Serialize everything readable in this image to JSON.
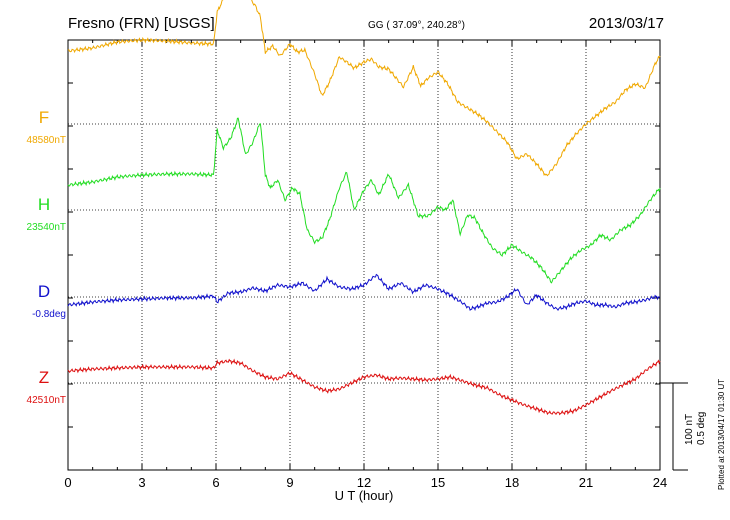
{
  "header": {
    "station": "Fresno (FRN)  [USGS]",
    "coords": "GG ( 37.09°, 240.28°)",
    "date": "2013/03/17"
  },
  "side_note": "Plotted at 2013/04/17 01:30 UT",
  "scale_labels": [
    "100 nT",
    "0.5 deg"
  ],
  "colors": {
    "F": "#f0a800",
    "H": "#22dd22",
    "D": "#1010cc",
    "Z": "#dd1010",
    "axis": "#000000"
  },
  "chart_data": {
    "type": "line",
    "xlabel": "U T (hour)",
    "xlim": [
      0,
      24
    ],
    "xticks": [
      "0",
      "3",
      "6",
      "9",
      "12",
      "15",
      "18",
      "21",
      "24"
    ],
    "series": [
      {
        "name": "F",
        "baseline_label": "48580nT",
        "x": [
          0,
          1,
          2,
          3,
          4,
          5,
          5.9,
          6.05,
          6.3,
          6.6,
          6.8,
          7.0,
          7.3,
          7.6,
          7.8,
          8.0,
          8.3,
          8.6,
          9.0,
          9.3,
          9.6,
          10.0,
          10.3,
          10.6,
          11.0,
          11.3,
          11.6,
          12.0,
          12.3,
          12.6,
          13.0,
          13.3,
          13.6,
          14.0,
          14.3,
          14.6,
          15.0,
          15.4,
          15.8,
          16.2,
          16.6,
          17.0,
          17.4,
          17.8,
          18.2,
          18.6,
          19.0,
          19.4,
          19.8,
          20.2,
          20.6,
          21.0,
          21.4,
          21.8,
          22.2,
          22.6,
          23.0,
          23.4,
          23.8,
          24
        ],
        "y": [
          73,
          76,
          82,
          84,
          83,
          81,
          80,
          112,
          125,
          137,
          150,
          140,
          128,
          118,
          107,
          72,
          78,
          68,
          80,
          72,
          74,
          50,
          28,
          42,
          67,
          62,
          56,
          62,
          65,
          57,
          55,
          46,
          37,
          57,
          38,
          46,
          52,
          40,
          22,
          16,
          10,
          2,
          -8,
          -18,
          -35,
          -30,
          -40,
          -52,
          -40,
          -22,
          -10,
          0,
          8,
          16,
          22,
          34,
          40,
          36,
          60,
          68
        ]
      },
      {
        "name": "H",
        "baseline_label": "23540nT",
        "x": [
          0,
          1,
          2,
          3,
          4,
          5,
          5.9,
          6.05,
          6.3,
          6.6,
          6.9,
          7.2,
          7.5,
          7.8,
          8.0,
          8.2,
          8.5,
          8.8,
          9.1,
          9.4,
          9.7,
          10.0,
          10.3,
          10.6,
          11.0,
          11.3,
          11.6,
          12.0,
          12.3,
          12.6,
          13.0,
          13.4,
          13.8,
          14.2,
          14.6,
          15.0,
          15.3,
          15.6,
          15.9,
          16.2,
          16.5,
          16.8,
          17.2,
          17.6,
          18.0,
          18.4,
          18.8,
          19.2,
          19.6,
          20.0,
          20.4,
          20.8,
          21.2,
          21.6,
          22.0,
          22.4,
          22.8,
          23.2,
          23.6,
          24
        ],
        "y": [
          25,
          28,
          33,
          35,
          36,
          36,
          35,
          80,
          62,
          72,
          92,
          55,
          68,
          88,
          35,
          22,
          30,
          10,
          22,
          16,
          -20,
          -32,
          -28,
          -10,
          22,
          38,
          0,
          20,
          30,
          15,
          36,
          12,
          25,
          -6,
          -6,
          3,
          0,
          10,
          -24,
          -5,
          -8,
          -22,
          -38,
          -45,
          -35,
          -42,
          -48,
          -58,
          -72,
          -60,
          -48,
          -40,
          -35,
          -25,
          -30,
          -20,
          -15,
          -5,
          10,
          22
        ]
      },
      {
        "name": "D",
        "baseline_label": "-0.8deg",
        "x": [
          0,
          1,
          2,
          3,
          4,
          5,
          5.9,
          6.05,
          6.5,
          7.0,
          7.5,
          8.0,
          8.5,
          9.0,
          9.5,
          10.0,
          10.5,
          11.0,
          11.5,
          12.0,
          12.5,
          13.0,
          13.5,
          14.0,
          14.5,
          15.0,
          15.5,
          16.0,
          16.3,
          16.6,
          17.0,
          17.4,
          17.8,
          18.2,
          18.6,
          19.0,
          19.4,
          19.8,
          20.2,
          20.6,
          21.0,
          21.4,
          21.8,
          22.2,
          22.6,
          23.0,
          23.4,
          23.8,
          24
        ],
        "y": [
          -8,
          -5,
          -3,
          -2,
          -1,
          -1,
          1,
          -5,
          4,
          5,
          9,
          6,
          12,
          10,
          14,
          6,
          18,
          10,
          8,
          12,
          22,
          8,
          14,
          5,
          12,
          8,
          2,
          -6,
          -12,
          -10,
          -6,
          -5,
          0,
          8,
          -8,
          2,
          -6,
          -12,
          -10,
          -6,
          -4,
          -8,
          -8,
          -10,
          -6,
          -5,
          -3,
          0,
          0
        ]
      },
      {
        "name": "Z",
        "baseline_label": "42510nT",
        "x": [
          0,
          1,
          2,
          3,
          4,
          5,
          5.9,
          6.05,
          6.5,
          7.0,
          7.5,
          8.0,
          8.5,
          9.0,
          9.5,
          10.0,
          10.5,
          11.0,
          11.5,
          12.0,
          12.5,
          13.0,
          13.5,
          14.0,
          14.5,
          15.0,
          15.5,
          16.0,
          16.5,
          17.0,
          17.5,
          18.0,
          18.5,
          19.0,
          19.5,
          20.0,
          20.5,
          21.0,
          21.5,
          22.0,
          22.5,
          23.0,
          23.5,
          24
        ],
        "y": [
          12,
          14,
          15,
          16,
          16,
          16,
          15,
          20,
          22,
          20,
          12,
          6,
          4,
          10,
          3,
          -4,
          -8,
          -6,
          0,
          6,
          8,
          4,
          5,
          4,
          3,
          4,
          6,
          2,
          -2,
          -5,
          -12,
          -17,
          -22,
          -26,
          -30,
          -30,
          -28,
          -22,
          -15,
          -8,
          -2,
          4,
          14,
          22
        ]
      }
    ],
    "grid": true,
    "legend": "left"
  }
}
